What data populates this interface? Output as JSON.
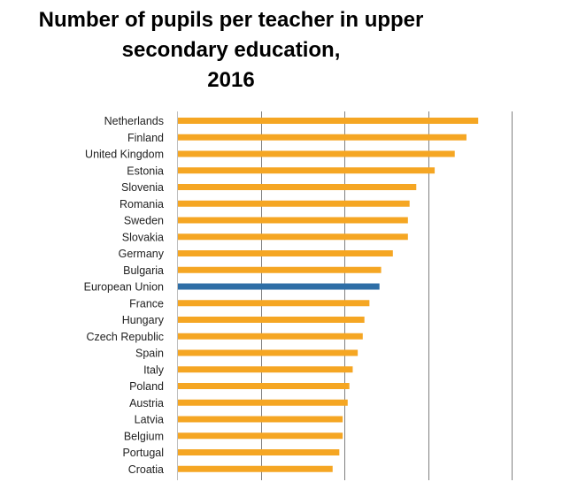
{
  "chart_data": {
    "type": "bar",
    "orientation": "horizontal",
    "title_lines": [
      "Number of pupils per teacher in upper",
      "secondary education,",
      "2016"
    ],
    "title": "Number of pupils per teacher in upper secondary education, 2016",
    "xlabel": "",
    "ylabel": "",
    "categories": [
      "Netherlands",
      "Finland",
      "United Kingdom",
      "Estonia",
      "Slovenia",
      "Romania",
      "Sweden",
      "Slovakia",
      "Germany",
      "Bulgaria",
      "European Union",
      "France",
      "Hungary",
      "Czech Republic",
      "Spain",
      "Italy",
      "Poland",
      "Austria",
      "Latvia",
      "Belgium",
      "Portugal",
      "Croatia"
    ],
    "values": [
      18.0,
      17.3,
      16.6,
      15.4,
      14.3,
      13.9,
      13.8,
      13.8,
      12.9,
      12.2,
      12.1,
      11.5,
      11.2,
      11.1,
      10.8,
      10.5,
      10.3,
      10.2,
      9.9,
      9.9,
      9.7,
      9.3
    ],
    "highlight_category": "European Union",
    "xlim": [
      0,
      20
    ],
    "x_gridlines": [
      5,
      10,
      15,
      20
    ],
    "x_tick_labels_shown": false,
    "grid": true,
    "legend": "none",
    "colors": {
      "bar": "#F5A623",
      "highlight": "#2E6EA6",
      "grid": "#7f7f7f"
    }
  }
}
